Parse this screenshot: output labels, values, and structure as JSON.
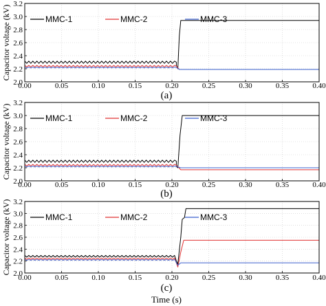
{
  "figure": {
    "xlabel": "Time (s)"
  },
  "chart_data": [
    {
      "type": "line",
      "panel_label": "(a)",
      "ylabel": "Capacitor voltage (kV)",
      "xlim": [
        0.0,
        0.4
      ],
      "ylim": [
        2.0,
        3.2
      ],
      "xticks": [
        "0.00",
        "0.05",
        "0.10",
        "0.15",
        "0.20",
        "0.25",
        "0.30",
        "0.35",
        "0.40"
      ],
      "yticks": [
        "2.0",
        "2.2",
        "2.4",
        "2.6",
        "2.8",
        "3.0",
        "3.2"
      ],
      "grid": true,
      "legend_position": "top-left",
      "series": [
        {
          "name": "MMC-1",
          "color": "#000000",
          "pre_level": 2.3,
          "ripple": 0.035,
          "points": [
            [
              0.206,
              2.3
            ],
            [
              0.206,
              2.25
            ],
            [
              0.208,
              2.2
            ],
            [
              0.21,
              2.7
            ],
            [
              0.212,
              2.94
            ],
            [
              0.4,
              2.94
            ]
          ]
        },
        {
          "name": "MMC-2",
          "color": "#e03030",
          "pre_level": 2.24,
          "ripple": 0.025,
          "points": [
            [
              0.206,
              2.24
            ],
            [
              0.21,
              2.19
            ],
            [
              0.4,
              2.19
            ]
          ]
        },
        {
          "name": "MMC-3",
          "color": "#3a5fcd",
          "pre_level": 2.22,
          "ripple": 0.015,
          "points": [
            [
              0.206,
              2.22
            ],
            [
              0.21,
              2.19
            ],
            [
              0.4,
              2.19
            ]
          ]
        }
      ]
    },
    {
      "type": "line",
      "panel_label": "(b)",
      "ylabel": "Capacitor voltage (kV)",
      "xlim": [
        0.0,
        0.4
      ],
      "ylim": [
        2.0,
        3.2
      ],
      "xticks": [
        "0.00",
        "0.05",
        "0.10",
        "0.15",
        "0.20",
        "0.25",
        "0.30",
        "0.35",
        "0.40"
      ],
      "yticks": [
        "2.0",
        "2.2",
        "2.4",
        "2.6",
        "2.8",
        "3.0",
        "3.2"
      ],
      "grid": true,
      "legend_position": "top-left",
      "series": [
        {
          "name": "MMC-1",
          "color": "#000000",
          "pre_level": 2.3,
          "ripple": 0.035,
          "points": [
            [
              0.206,
              2.3
            ],
            [
              0.206,
              2.22
            ],
            [
              0.208,
              2.2
            ],
            [
              0.211,
              2.7
            ],
            [
              0.214,
              3.0
            ],
            [
              0.4,
              3.0
            ]
          ]
        },
        {
          "name": "MMC-2",
          "color": "#e03030",
          "pre_level": 2.24,
          "ripple": 0.025,
          "points": [
            [
              0.206,
              2.24
            ],
            [
              0.212,
              2.17
            ],
            [
              0.4,
              2.17
            ]
          ]
        },
        {
          "name": "MMC-3",
          "color": "#3a5fcd",
          "pre_level": 2.22,
          "ripple": 0.015,
          "points": [
            [
              0.206,
              2.22
            ],
            [
              0.212,
              2.2
            ],
            [
              0.4,
              2.2
            ]
          ]
        }
      ]
    },
    {
      "type": "line",
      "panel_label": "(c)",
      "ylabel": "Capacitor voltage (kV)",
      "xlim": [
        0.0,
        0.4
      ],
      "ylim": [
        2.0,
        3.2
      ],
      "xticks": [
        "0.00",
        "0.05",
        "0.10",
        "0.15",
        "0.20",
        "0.25",
        "0.30",
        "0.35",
        "0.40"
      ],
      "yticks": [
        "2.0",
        "2.2",
        "2.4",
        "2.6",
        "2.8",
        "3.0",
        "3.2"
      ],
      "grid": true,
      "legend_position": "top-left",
      "series": [
        {
          "name": "MMC-1",
          "color": "#000000",
          "pre_level": 2.28,
          "ripple": 0.03,
          "points": [
            [
              0.204,
              2.28
            ],
            [
              0.206,
              2.2
            ],
            [
              0.208,
              2.15
            ],
            [
              0.212,
              2.6
            ],
            [
              0.214,
              2.9
            ],
            [
              0.217,
              2.93
            ],
            [
              0.219,
              3.08
            ],
            [
              0.4,
              3.08
            ]
          ]
        },
        {
          "name": "MMC-2",
          "color": "#e03030",
          "pre_level": 2.24,
          "ripple": 0.025,
          "points": [
            [
              0.204,
              2.24
            ],
            [
              0.208,
              2.1
            ],
            [
              0.212,
              2.35
            ],
            [
              0.216,
              2.55
            ],
            [
              0.4,
              2.55
            ]
          ]
        },
        {
          "name": "MMC-3",
          "color": "#3a5fcd",
          "pre_level": 2.22,
          "ripple": 0.015,
          "points": [
            [
              0.204,
              2.22
            ],
            [
              0.208,
              2.13
            ],
            [
              0.212,
              2.17
            ],
            [
              0.4,
              2.17
            ]
          ]
        }
      ]
    }
  ]
}
